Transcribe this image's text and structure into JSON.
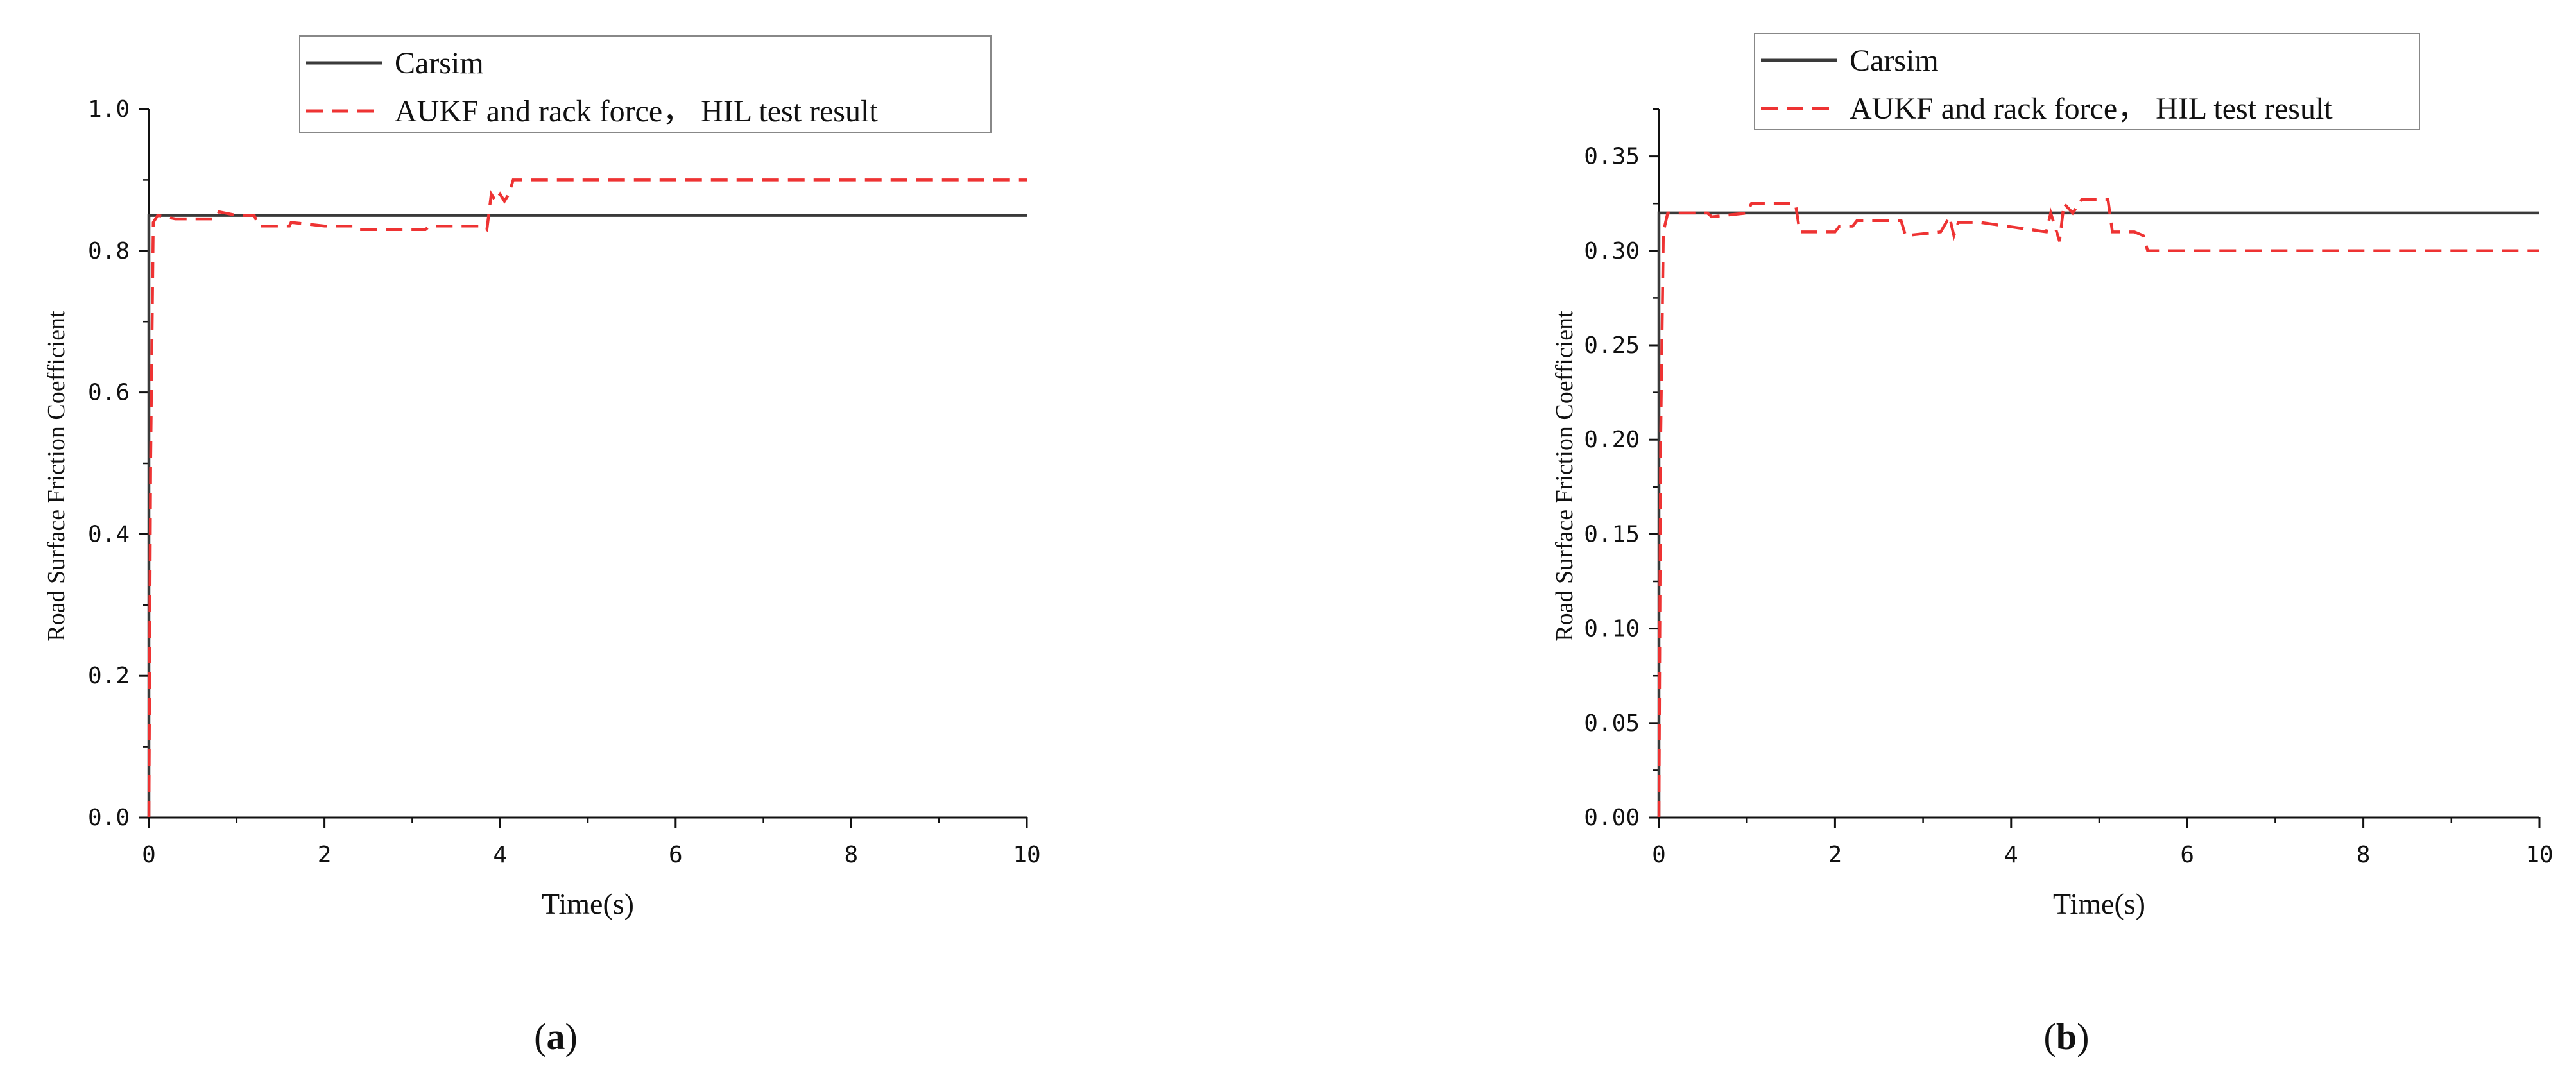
{
  "chart_data": [
    {
      "type": "line",
      "panel_label": "a",
      "xlabel": "Time(s)",
      "ylabel": "Road Surface Friction Coefficient",
      "xlim": [
        0,
        10
      ],
      "ylim": [
        0,
        1.0
      ],
      "x_ticks": [
        "0",
        "2",
        "4",
        "6",
        "8",
        "10"
      ],
      "y_ticks": [
        "0.0",
        "0.2",
        "0.4",
        "0.6",
        "0.8",
        "1.0"
      ],
      "legend_position": "top",
      "grid": false,
      "series": [
        {
          "name": "Carsim",
          "color": "#3a3a3a",
          "style": "solid",
          "x": [
            0,
            0,
            10
          ],
          "y": [
            0,
            0.85,
            0.85
          ]
        },
        {
          "name": "AUKF and rack force， HIL test result",
          "color": "#ee3333",
          "style": "dashed",
          "x": [
            0,
            0.02,
            0.05,
            0.1,
            0.3,
            0.6,
            0.75,
            0.8,
            1.0,
            1.2,
            1.25,
            1.6,
            1.62,
            2.0,
            2.35,
            2.4,
            3.0,
            3.15,
            3.2,
            3.8,
            3.85,
            3.9,
            3.95,
            4.0,
            4.05,
            4.1,
            4.15,
            10
          ],
          "y": [
            0,
            0.5,
            0.84,
            0.85,
            0.845,
            0.845,
            0.845,
            0.855,
            0.85,
            0.85,
            0.835,
            0.835,
            0.84,
            0.835,
            0.835,
            0.83,
            0.83,
            0.83,
            0.835,
            0.835,
            0.83,
            0.88,
            0.87,
            0.88,
            0.87,
            0.88,
            0.9,
            0.9
          ]
        }
      ]
    },
    {
      "type": "line",
      "panel_label": "b",
      "xlabel": "Time(s)",
      "ylabel": "Road Surface Friction Coefficient",
      "xlim": [
        0,
        10
      ],
      "ylim": [
        0,
        0.375
      ],
      "x_ticks": [
        "0",
        "2",
        "4",
        "6",
        "8",
        "10"
      ],
      "y_ticks": [
        "0.00",
        "0.05",
        "0.10",
        "0.15",
        "0.20",
        "0.25",
        "0.30",
        "0.35"
      ],
      "legend_position": "top",
      "grid": false,
      "series": [
        {
          "name": "Carsim",
          "color": "#3a3a3a",
          "style": "solid",
          "x": [
            0,
            0,
            10
          ],
          "y": [
            0,
            0.32,
            0.32
          ]
        },
        {
          "name": "AUKF and rack force， HIL test result",
          "color": "#ee3333",
          "style": "dashed",
          "x": [
            0,
            0.02,
            0.05,
            0.1,
            0.55,
            0.6,
            1.0,
            1.05,
            1.55,
            1.6,
            2.0,
            2.05,
            2.2,
            2.25,
            2.75,
            2.8,
            3.2,
            3.3,
            3.35,
            3.4,
            3.6,
            3.65,
            4.4,
            4.45,
            4.55,
            4.6,
            4.7,
            4.8,
            5.1,
            5.15,
            5.4,
            5.5,
            5.55,
            10
          ],
          "y": [
            0,
            0.2,
            0.31,
            0.32,
            0.32,
            0.318,
            0.32,
            0.325,
            0.325,
            0.31,
            0.31,
            0.313,
            0.313,
            0.316,
            0.316,
            0.308,
            0.31,
            0.318,
            0.308,
            0.315,
            0.315,
            0.315,
            0.31,
            0.32,
            0.305,
            0.325,
            0.32,
            0.327,
            0.327,
            0.31,
            0.31,
            0.308,
            0.3,
            0.3
          ]
        }
      ]
    }
  ]
}
